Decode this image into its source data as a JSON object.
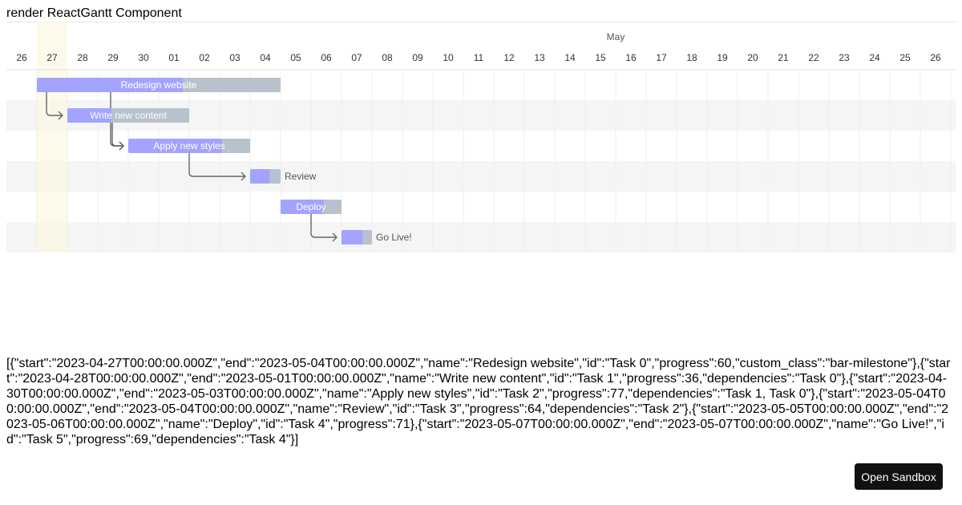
{
  "header": {
    "title": "render ReactGantt Component"
  },
  "gantt": {
    "month": "May",
    "days": [
      "26",
      "27",
      "28",
      "29",
      "30",
      "01",
      "02",
      "03",
      "04",
      "05",
      "06",
      "07",
      "08",
      "09",
      "10",
      "11",
      "12",
      "13",
      "14",
      "15",
      "16",
      "17",
      "18",
      "19",
      "20",
      "21",
      "22",
      "23",
      "24",
      "25",
      "26"
    ],
    "tasks": [
      {
        "name": "Redesign website",
        "id": "Task 0",
        "start": "2023-04-27T00:00:00.000Z",
        "end": "2023-05-04T00:00:00.000Z",
        "progress": 60,
        "dependencies": null
      },
      {
        "name": "Write new content",
        "id": "Task 1",
        "start": "2023-04-28T00:00:00.000Z",
        "end": "2023-05-01T00:00:00.000Z",
        "progress": 36,
        "dependencies": "Task 0"
      },
      {
        "name": "Apply new styles",
        "id": "Task 2",
        "start": "2023-04-30T00:00:00.000Z",
        "end": "2023-05-03T00:00:00.000Z",
        "progress": 77,
        "dependencies": "Task 1, Task 0"
      },
      {
        "name": "Review",
        "id": "Task 3",
        "start": "2023-05-04T00:00:00.000Z",
        "end": "2023-05-04T00:00:00.000Z",
        "progress": 64,
        "dependencies": "Task 2"
      },
      {
        "name": "Deploy",
        "id": "Task 4",
        "start": "2023-05-05T00:00:00.000Z",
        "end": "2023-05-06T00:00:00.000Z",
        "progress": 71,
        "dependencies": null
      },
      {
        "name": "Go Live!",
        "id": "Task 5",
        "start": "2023-05-07T00:00:00.000Z",
        "end": "2023-05-07T00:00:00.000Z",
        "progress": 69,
        "dependencies": "Task 4"
      }
    ]
  },
  "dump": "[{\"start\":\"2023-04-27T00:00:00.000Z\",\"end\":\"2023-05-04T00:00:00.000Z\",\"name\":\"Redesign website\",\"id\":\"Task 0\",\"progress\":60,\"custom_class\":\"bar-milestone\"},{\"start\":\"2023-04-28T00:00:00.000Z\",\"end\":\"2023-05-01T00:00:00.000Z\",\"name\":\"Write new content\",\"id\":\"Task 1\",\"progress\":36,\"dependencies\":\"Task 0\"},{\"start\":\"2023-04-30T00:00:00.000Z\",\"end\":\"2023-05-03T00:00:00.000Z\",\"name\":\"Apply new styles\",\"id\":\"Task 2\",\"progress\":77,\"dependencies\":\"Task 1, Task 0\"},{\"start\":\"2023-05-04T00:00:00.000Z\",\"end\":\"2023-05-04T00:00:00.000Z\",\"name\":\"Review\",\"id\":\"Task 3\",\"progress\":64,\"dependencies\":\"Task 2\"},{\"start\":\"2023-05-05T00:00:00.000Z\",\"end\":\"2023-05-06T00:00:00.000Z\",\"name\":\"Deploy\",\"id\":\"Task 4\",\"progress\":71},{\"start\":\"2023-05-07T00:00:00.000Z\",\"end\":\"2023-05-07T00:00:00.000Z\",\"name\":\"Go Live!\",\"id\":\"Task 5\",\"progress\":69,\"dependencies\":\"Task 4\"}]",
  "button": "Open Sandbox"
}
